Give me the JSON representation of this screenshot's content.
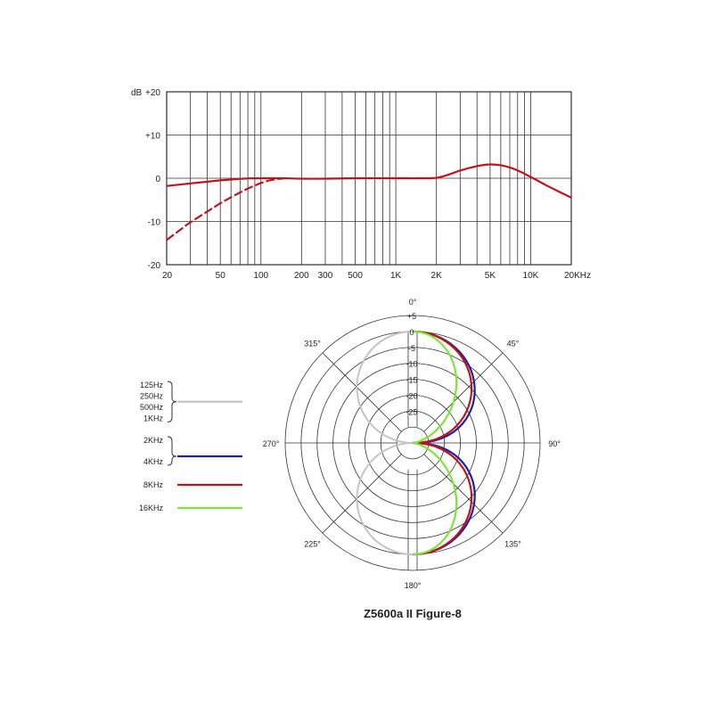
{
  "chart_data": [
    {
      "type": "line",
      "xscale": "log",
      "xlim": [
        20,
        20000
      ],
      "ylim": [
        -20,
        20
      ],
      "ylabel": "dB",
      "y_ticks": [
        {
          "value": 20,
          "label": "+20"
        },
        {
          "value": 10,
          "label": "+10"
        },
        {
          "value": 0,
          "label": "0"
        },
        {
          "value": -10,
          "label": "-10"
        },
        {
          "value": -20,
          "label": "-20"
        }
      ],
      "x_ticks": [
        {
          "value": 20,
          "label": "20"
        },
        {
          "value": 50,
          "label": "50"
        },
        {
          "value": 100,
          "label": "100"
        },
        {
          "value": 200,
          "label": "200"
        },
        {
          "value": 300,
          "label": "300"
        },
        {
          "value": 500,
          "label": "500"
        },
        {
          "value": 1000,
          "label": "1K"
        },
        {
          "value": 2000,
          "label": "2K"
        },
        {
          "value": 5000,
          "label": "5K"
        },
        {
          "value": 10000,
          "label": "10K"
        },
        {
          "value": 20000,
          "label": "20KHz"
        }
      ],
      "grid_x": [
        20,
        30,
        40,
        50,
        60,
        70,
        80,
        90,
        100,
        200,
        300,
        400,
        500,
        600,
        700,
        800,
        900,
        1000,
        2000,
        3000,
        4000,
        5000,
        6000,
        7000,
        8000,
        9000,
        10000,
        20000
      ],
      "grid": true,
      "series": [
        {
          "style": "solid",
          "color": "#c0141a",
          "x": [
            20,
            30,
            40,
            50,
            60,
            70,
            80,
            100,
            130,
            150,
            200,
            300,
            500,
            1000,
            1500,
            2000,
            2500,
            3000,
            4000,
            5000,
            6000,
            7000,
            8000,
            10000,
            13000,
            16000,
            20000
          ],
          "y": [
            -1.8,
            -1.2,
            -0.8,
            -0.5,
            -0.3,
            -0.15,
            -0.05,
            0,
            0,
            0,
            -0.1,
            -0.1,
            0,
            0,
            0,
            0.1,
            0.9,
            1.8,
            2.8,
            3.2,
            3.0,
            2.5,
            1.8,
            0.3,
            -1.6,
            -3.0,
            -4.5
          ]
        },
        {
          "style": "dashed",
          "color": "#c0141a",
          "x": [
            20,
            25,
            30,
            40,
            50,
            60,
            70,
            80,
            90,
            100,
            120,
            150
          ],
          "y": [
            -14.3,
            -12.0,
            -10.2,
            -7.7,
            -5.8,
            -4.4,
            -3.3,
            -2.4,
            -1.7,
            -1.1,
            -0.4,
            0
          ]
        }
      ]
    },
    {
      "type": "polar",
      "title": "Z5600a II Figure-8",
      "angle_labels": [
        {
          "deg": 0,
          "label": "0°"
        },
        {
          "deg": 45,
          "label": "45°"
        },
        {
          "deg": 90,
          "label": "90°"
        },
        {
          "deg": 135,
          "label": "135°"
        },
        {
          "deg": 180,
          "label": "180°"
        },
        {
          "deg": 225,
          "label": "225°"
        },
        {
          "deg": 270,
          "label": "270°"
        },
        {
          "deg": 315,
          "label": "315°"
        }
      ],
      "rlim_db": [
        -35,
        5
      ],
      "rings_db": [
        5,
        0,
        -5,
        -10,
        -15,
        -20,
        -25
      ],
      "ring_labels": [
        "+5",
        "0",
        "-5",
        "-10",
        "-15",
        "-20",
        "-25"
      ],
      "legend": [
        {
          "labels": [
            "125Hz",
            "250Hz",
            "500Hz",
            "1KHz"
          ],
          "color": "#c4c4c4",
          "bracket": true
        },
        {
          "labels": [
            "2KHz",
            "4KHz"
          ],
          "color": "#1a22a6",
          "bracket": true
        },
        {
          "labels": [
            "8KHz"
          ],
          "color": "#c0141a",
          "bracket": false
        },
        {
          "labels": [
            "16KHz"
          ],
          "color": "#7de63a",
          "bracket": false
        }
      ],
      "series": [
        {
          "name": "125Hz-1KHz",
          "color": "#c4c4c4",
          "side": "left",
          "shape": "figure-8",
          "width_db_at_90": 0
        },
        {
          "name": "2KHz-4KHz",
          "color": "#1a22a6",
          "side": "right",
          "shape": "figure-8",
          "width_db_at_90": 0
        },
        {
          "name": "8KHz",
          "color": "#c0141a",
          "side": "right",
          "shape": "figure-8",
          "width_db_at_90": -2
        },
        {
          "name": "16KHz",
          "color": "#7de63a",
          "side": "right",
          "shape": "figure-8",
          "width_db_at_90": -8
        }
      ]
    }
  ]
}
